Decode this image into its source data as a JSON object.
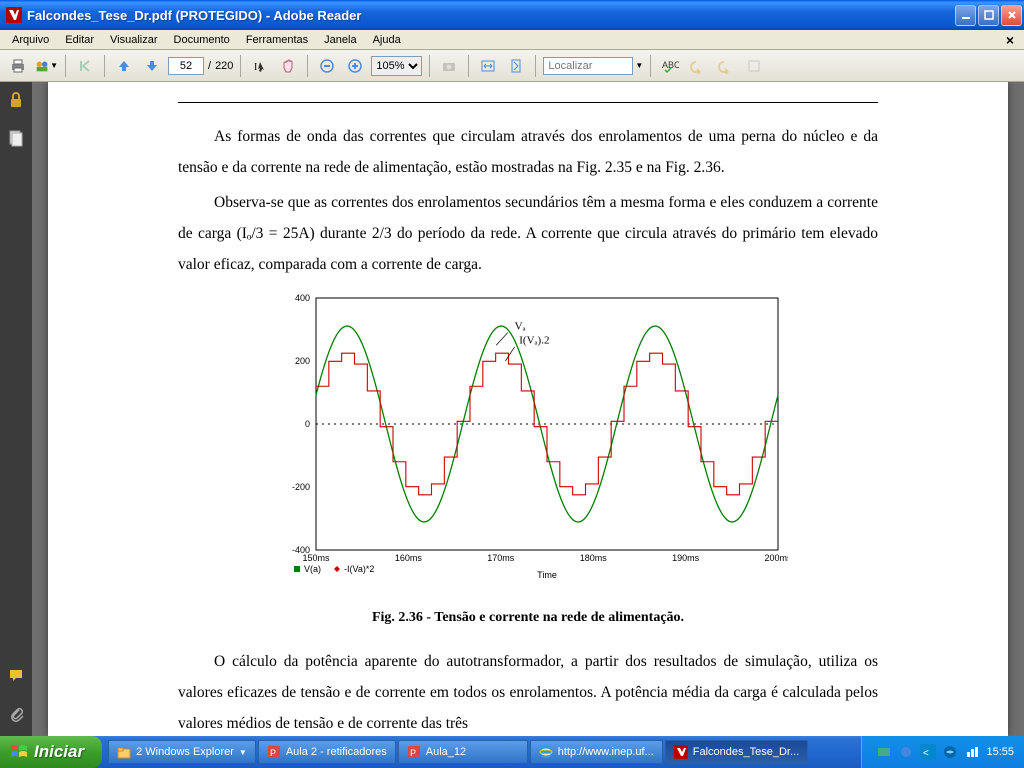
{
  "window": {
    "title": "Falcondes_Tese_Dr.pdf (PROTEGIDO) - Adobe Reader"
  },
  "menu": {
    "items": [
      "Arquivo",
      "Editar",
      "Visualizar",
      "Documento",
      "Ferramentas",
      "Janela",
      "Ajuda"
    ]
  },
  "toolbar": {
    "current_page": "52",
    "page_sep": "/",
    "total_pages": "220",
    "zoom": "105%",
    "search_placeholder": "Localizar"
  },
  "document": {
    "para1": "As formas de onda das correntes que circulam através dos enrolamentos de uma perna do núcleo e da tensão e da corrente na rede de alimentação, estão mostradas na Fig. 2.35 e na Fig. 2.36.",
    "para2": "Observa-se que as correntes dos enrolamentos secundários têm a mesma forma e eles conduzem a corrente de carga (Iₒ/3 = 25A) durante 2/3 do período da rede. A corrente que circula através do primário tem elevado valor eficaz, comparada com a corrente de carga.",
    "caption": "Fig. 2.36 - Tensão e corrente na rede de alimentação.",
    "para3": "O cálculo da potência aparente do autotransformador, a partir dos resultados de simulação, utiliza os valores eficazes de tensão e de corrente em todos os enrolamentos. A potência média da carga é calculada pelos valores médios de tensão e de corrente das três"
  },
  "chart": {
    "type": "line",
    "xlabel": "Time",
    "ylim": [
      -400,
      400
    ],
    "yticks": [
      -400,
      -200,
      0,
      200,
      400
    ],
    "xticks": [
      "150ms",
      "160ms",
      "170ms",
      "180ms",
      "190ms",
      "200ms"
    ],
    "legend_items": [
      "V(a)",
      "-I(Va)*2"
    ],
    "annot1": "Vₐ",
    "annot2": "I(Vₐ).2",
    "sine": {
      "color": "#008000",
      "amplitude": 311,
      "periods": 3,
      "stroke_width": 1.3
    },
    "step": {
      "color": "#cc0000",
      "amplitude": 225,
      "stroke_width": 1.1
    },
    "axis_color": "#000000",
    "grid_color": "#000000",
    "background": "#ffffff",
    "tick_fontsize": 9,
    "label_fontsize": 9
  },
  "taskbar": {
    "start": "Iniciar",
    "buttons": [
      {
        "label": "2 Windows Explorer",
        "icon": "folder",
        "dd": true
      },
      {
        "label": "Aula 2 - retificadores",
        "icon": "ppt"
      },
      {
        "label": "Aula_12",
        "icon": "ppt"
      },
      {
        "label": "http://www.inep.uf...",
        "icon": "ie"
      },
      {
        "label": "Falcondes_Tese_Dr...",
        "icon": "pdf",
        "active": true
      }
    ],
    "clock": "15:55"
  },
  "colors": {
    "xp_blue": "#245edb",
    "xp_green": "#3c9e2c",
    "toolbar_bg": "#ece9d8"
  }
}
